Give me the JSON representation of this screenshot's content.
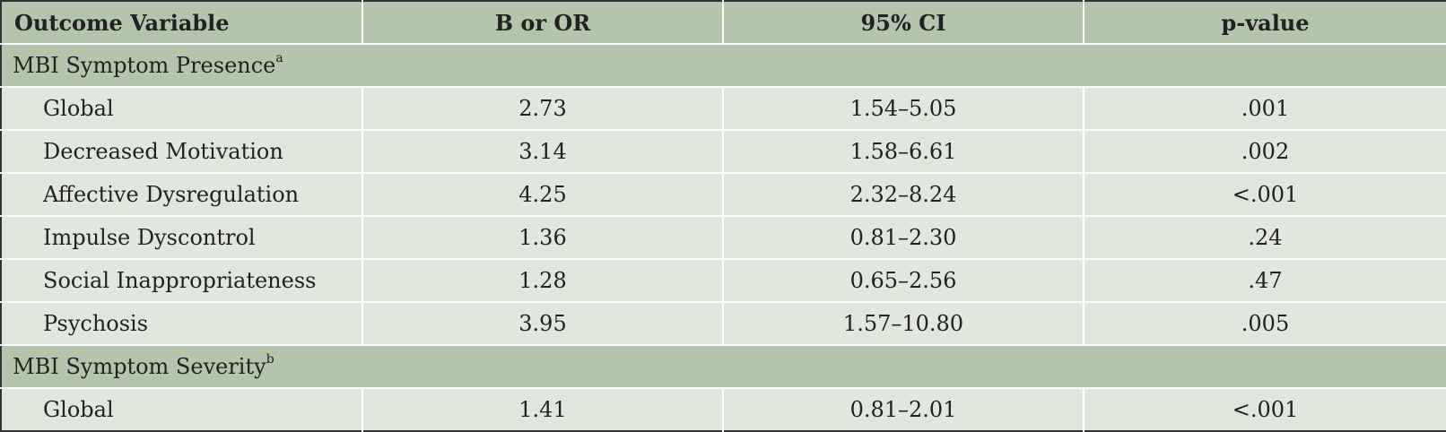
{
  "header": {
    "col1": "Outcome Variable",
    "col2": "B or OR",
    "col3": "95% CI",
    "col4": "p-value"
  },
  "sections": [
    {
      "title": "MBI Symptom Presence",
      "marker": "a",
      "rows": [
        {
          "label": "Global",
          "b_or": "2.73",
          "ci": "1.54–5.05",
          "p": ".001"
        },
        {
          "label": "Decreased Motivation",
          "b_or": "3.14",
          "ci": "1.58–6.61",
          "p": ".002"
        },
        {
          "label": "Affective Dysregulation",
          "b_or": "4.25",
          "ci": "2.32–8.24",
          "p": "<.001"
        },
        {
          "label": "Impulse Dyscontrol",
          "b_or": "1.36",
          "ci": "0.81–2.30",
          "p": ".24"
        },
        {
          "label": "Social Inappropriateness",
          "b_or": "1.28",
          "ci": "0.65–2.56",
          "p": ".47"
        },
        {
          "label": "Psychosis",
          "b_or": "3.95",
          "ci": "1.57–10.80",
          "p": ".005"
        }
      ]
    },
    {
      "title": "MBI Symptom Severity",
      "marker": "b",
      "rows": [
        {
          "label": "Global",
          "b_or": "1.41",
          "ci": "0.81–2.01",
          "p": "<.001"
        }
      ]
    }
  ],
  "colors": {
    "header_bg": "#b3c5aa",
    "row_bg": "#e2e7de",
    "border": "#333333"
  }
}
